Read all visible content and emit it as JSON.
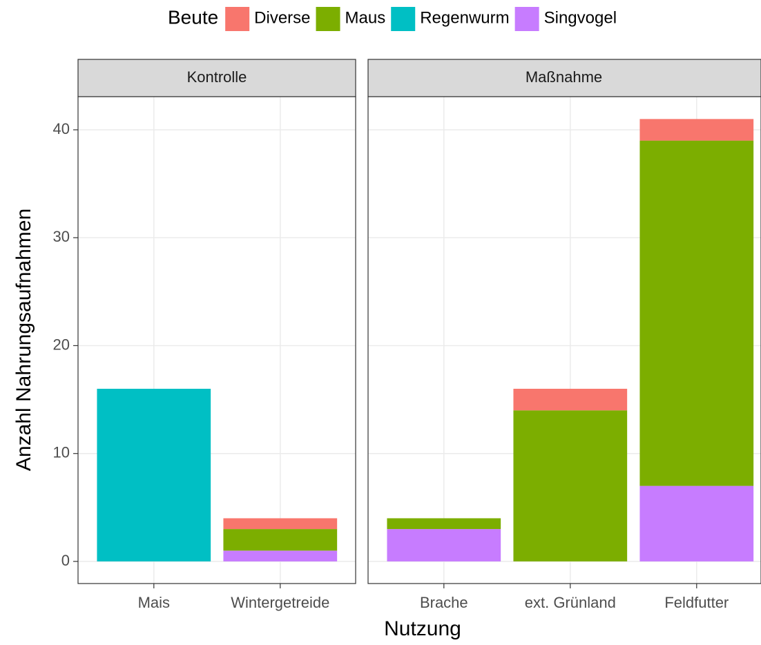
{
  "chart_data": {
    "type": "bar",
    "stacked": true,
    "legend_title": "Beute",
    "x_label": "Nutzung",
    "y_label": "Anzahl Nahrungsaufnahmen",
    "facets": [
      {
        "title": "Kontrolle",
        "categories": [
          "Mais",
          "Wintergetreide"
        ]
      },
      {
        "title": "Maßnahme",
        "categories": [
          "Brache",
          "ext. Grünland",
          "Feldfutter"
        ]
      }
    ],
    "series": [
      {
        "name": "Diverse",
        "color": "#f8766d",
        "values": [
          0,
          1,
          0,
          2,
          2
        ]
      },
      {
        "name": "Maus",
        "color": "#7cae00",
        "values": [
          0,
          2,
          1,
          14,
          32
        ]
      },
      {
        "name": "Regenwurm",
        "color": "#00bfc4",
        "values": [
          16,
          0,
          0,
          0,
          0
        ]
      },
      {
        "name": "Singvogel",
        "color": "#c77cff",
        "values": [
          0,
          1,
          3,
          0,
          7
        ]
      }
    ],
    "ylim": [
      -2.05,
      43.07
    ],
    "yticks": [
      0,
      10,
      20,
      30,
      40
    ],
    "grid": true,
    "legend": "top"
  }
}
